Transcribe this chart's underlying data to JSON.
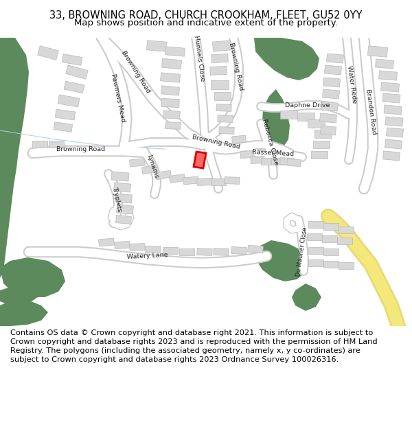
{
  "title": "33, BROWNING ROAD, CHURCH CROOKHAM, FLEET, GU52 0YY",
  "subtitle": "Map shows position and indicative extent of the property.",
  "copyright_text": "Contains OS data © Crown copyright and database right 2021. This information is subject to Crown copyright and database rights 2023 and is reproduced with the permission of HM Land Registry. The polygons (including the associated geometry, namely x, y co-ordinates) are subject to Crown copyright and database rights 2023 Ordnance Survey 100026316.",
  "bg_color": "#ffffff",
  "green_color": "#5c8a5c",
  "building_color": "#d8d8d8",
  "building_stroke": "#b8b8b8",
  "road_outer": "#cccccc",
  "road_inner": "#ffffff",
  "yellow_outer": "#e8d080",
  "yellow_inner": "#f5e070",
  "highlight_color": "#dd0000",
  "highlight_fill": "#ff6666",
  "label_color": "#222222",
  "title_fontsize": 10.5,
  "subtitle_fontsize": 9.5,
  "copyright_fontsize": 8.2
}
